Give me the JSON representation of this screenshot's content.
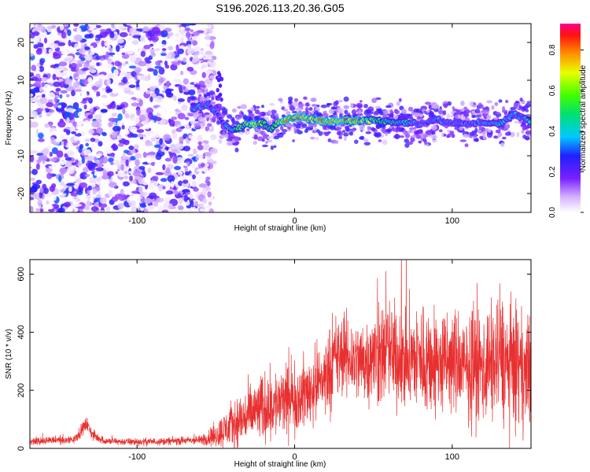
{
  "figure_title": "S196.2026.113.20.36.G05",
  "chart_data": [
    {
      "type": "heatmap",
      "title": "S196.2026.113.20.36.G05",
      "xlabel": "Height of straight line (km)",
      "ylabel": "Frequency (Hz)",
      "xlim": [
        -168,
        150
      ],
      "ylim": [
        -25,
        25
      ],
      "xticks": [
        -100,
        0,
        100
      ],
      "yticks": [
        -20,
        -10,
        0,
        10,
        20
      ],
      "colorbar": {
        "label": "Normalized spectral amplitude",
        "range": [
          0,
          0.93
        ],
        "ticks": [
          "0.0",
          "0.2",
          "0.4",
          "0.6",
          "0.8"
        ],
        "tick_values": [
          0,
          0.2,
          0.4,
          0.6,
          0.8
        ]
      },
      "noise_region_km": [
        -168,
        -55
      ],
      "ridge": {
        "height_km": [
          -65,
          -55,
          -50,
          -45,
          -40,
          -35,
          -30,
          -25,
          -20,
          -15,
          -10,
          -5,
          0,
          5,
          10,
          20,
          30,
          40,
          50,
          60,
          70,
          80,
          90,
          100,
          110,
          120,
          130,
          140,
          150
        ],
        "frequency_hz": [
          2.5,
          3.5,
          1.5,
          -2.0,
          -3.0,
          -2.5,
          -1.5,
          -1.8,
          -1.2,
          -3.0,
          -1.0,
          -0.5,
          0.2,
          0.3,
          -0.5,
          -0.8,
          -0.8,
          -0.7,
          -0.6,
          -0.9,
          -1.2,
          -1.5,
          -0.5,
          -1.2,
          -1.5,
          -1.0,
          -1.5,
          1.0,
          -1.0
        ],
        "amplitude": [
          0.35,
          0.4,
          0.3,
          0.3,
          0.5,
          0.6,
          0.65,
          0.7,
          0.65,
          0.5,
          0.7,
          0.8,
          0.85,
          0.82,
          0.78,
          0.82,
          0.85,
          0.8,
          0.65,
          0.5,
          0.45,
          0.35,
          0.35,
          0.35,
          0.35,
          0.4,
          0.45,
          0.4,
          0.4
        ]
      }
    },
    {
      "type": "line",
      "xlabel": "Height of straight line (km)",
      "ylabel": "SNR (10 * v/v)",
      "xlim": [
        -168,
        150
      ],
      "ylim": [
        0,
        650
      ],
      "xticks": [
        -100,
        0,
        100
      ],
      "yticks": [
        0,
        200,
        400,
        600
      ],
      "color": "#e83030",
      "envelope": {
        "height_km": [
          -168,
          -140,
          -132,
          -128,
          -120,
          -100,
          -80,
          -60,
          -50,
          -40,
          -30,
          -20,
          -10,
          0,
          10,
          20,
          25,
          30,
          40,
          50,
          60,
          70,
          80,
          90,
          100,
          110,
          120,
          130,
          140,
          150
        ],
        "snr_mean": [
          25,
          30,
          85,
          45,
          25,
          22,
          25,
          28,
          45,
          80,
          110,
          140,
          155,
          170,
          200,
          250,
          300,
          320,
          300,
          310,
          330,
          300,
          310,
          290,
          300,
          270,
          280,
          310,
          270,
          260
        ],
        "snr_spread": [
          10,
          12,
          20,
          15,
          10,
          10,
          10,
          12,
          35,
          65,
          80,
          95,
          95,
          90,
          100,
          110,
          120,
          110,
          110,
          130,
          140,
          140,
          150,
          150,
          140,
          140,
          150,
          170,
          160,
          150
        ]
      }
    }
  ]
}
